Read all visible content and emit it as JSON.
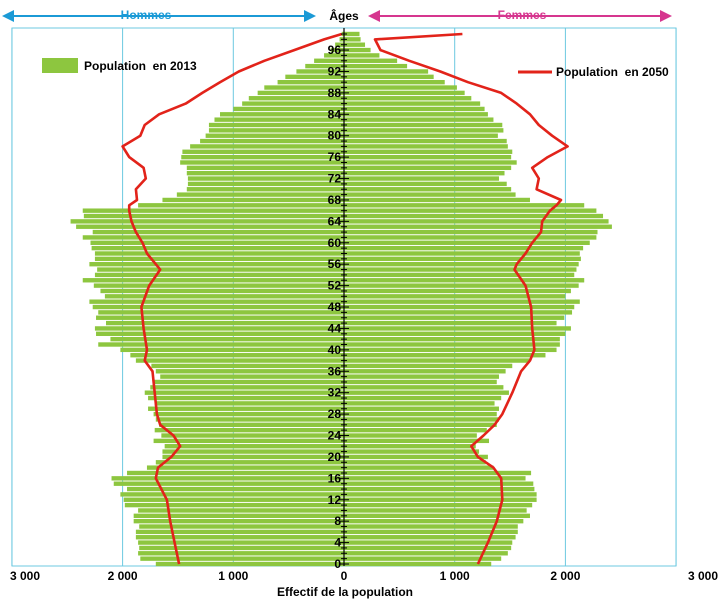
{
  "chart_data": {
    "type": "bar",
    "orientation": "horizontal",
    "xlabel": "Effectif de la population",
    "ylabel": "Âges",
    "xlim": [
      -3000,
      3000
    ],
    "x_tick_values": [
      -3000,
      -2000,
      -1000,
      0,
      1000,
      2000,
      3000
    ],
    "x_tick_labels": [
      "3 000",
      "2 000",
      "1 000",
      "0",
      "1 000",
      "2 000",
      "3 000"
    ],
    "ylim": [
      0,
      99
    ],
    "y_tick_values": [
      0,
      4,
      8,
      12,
      16,
      20,
      24,
      28,
      32,
      36,
      40,
      44,
      48,
      52,
      56,
      60,
      64,
      68,
      72,
      76,
      80,
      84,
      88,
      92,
      96
    ],
    "y_tick_labels": [
      "0",
      "4",
      "8",
      "12",
      "16",
      "20",
      "24",
      "28",
      "32",
      "36",
      "40",
      "44",
      "48",
      "52",
      "56",
      "60",
      "64",
      "68",
      "72",
      "76",
      "80",
      "84",
      "88",
      "92",
      "96"
    ],
    "side_labels": {
      "left": "Hommes",
      "right": "Femmes"
    },
    "colors": {
      "bars": "#8dc63f",
      "line": "#e2231a",
      "left_arrow": "#1b9ad6",
      "right_arrow": "#d6368f",
      "grid": "#6cc8e0"
    },
    "legend": {
      "placement": "top"
    },
    "grid": true,
    "series": [
      {
        "name": "Population  en 2013",
        "kind": "bar",
        "ages": [
          0,
          1,
          2,
          3,
          4,
          5,
          6,
          7,
          8,
          9,
          10,
          11,
          12,
          13,
          14,
          15,
          16,
          17,
          18,
          19,
          20,
          21,
          22,
          23,
          24,
          25,
          26,
          27,
          28,
          29,
          30,
          31,
          32,
          33,
          34,
          35,
          36,
          37,
          38,
          39,
          40,
          41,
          42,
          43,
          44,
          45,
          46,
          47,
          48,
          49,
          50,
          51,
          52,
          53,
          54,
          55,
          56,
          57,
          58,
          59,
          60,
          61,
          62,
          63,
          64,
          65,
          66,
          67,
          68,
          69,
          70,
          71,
          72,
          73,
          74,
          75,
          76,
          77,
          78,
          79,
          80,
          81,
          82,
          83,
          84,
          85,
          86,
          87,
          88,
          89,
          90,
          91,
          92,
          93,
          94,
          95,
          96,
          97,
          98,
          99
        ],
        "men": [
          1700,
          1840,
          1860,
          1850,
          1860,
          1880,
          1880,
          1850,
          1900,
          1900,
          1860,
          1980,
          1990,
          2020,
          1960,
          2080,
          2100,
          1960,
          1780,
          1700,
          1640,
          1640,
          1620,
          1720,
          1650,
          1710,
          1670,
          1700,
          1720,
          1770,
          1710,
          1770,
          1800,
          1750,
          1720,
          1660,
          1700,
          1740,
          1880,
          1930,
          2020,
          2220,
          2110,
          2240,
          2250,
          2150,
          2240,
          2220,
          2270,
          2300,
          2160,
          2200,
          2260,
          2360,
          2250,
          2230,
          2300,
          2250,
          2250,
          2280,
          2290,
          2360,
          2270,
          2420,
          2470,
          2350,
          2360,
          1860,
          1640,
          1510,
          1420,
          1410,
          1410,
          1420,
          1420,
          1480,
          1470,
          1460,
          1390,
          1300,
          1250,
          1220,
          1220,
          1170,
          1120,
          1000,
          920,
          860,
          780,
          720,
          600,
          530,
          430,
          350,
          270,
          180,
          120,
          80,
          40,
          20
        ],
        "women": [
          1330,
          1420,
          1480,
          1510,
          1520,
          1550,
          1570,
          1570,
          1620,
          1680,
          1650,
          1700,
          1740,
          1740,
          1720,
          1710,
          1640,
          1690,
          1350,
          1280,
          1300,
          1220,
          1190,
          1310,
          1200,
          1290,
          1380,
          1400,
          1380,
          1400,
          1360,
          1420,
          1490,
          1440,
          1380,
          1400,
          1460,
          1520,
          1680,
          1820,
          1920,
          1950,
          1950,
          2000,
          2050,
          1920,
          1990,
          2060,
          2080,
          2130,
          2000,
          2050,
          2120,
          2170,
          2080,
          2100,
          2120,
          2140,
          2130,
          2160,
          2220,
          2280,
          2290,
          2420,
          2390,
          2340,
          2280,
          2170,
          1680,
          1550,
          1510,
          1470,
          1400,
          1450,
          1510,
          1560,
          1510,
          1520,
          1480,
          1470,
          1390,
          1440,
          1430,
          1350,
          1300,
          1270,
          1230,
          1150,
          1090,
          1020,
          910,
          810,
          760,
          570,
          480,
          320,
          240,
          190,
          150,
          140
        ]
      },
      {
        "name": "Population  en 2050",
        "kind": "line",
        "ages": [
          0,
          4,
          8,
          12,
          16,
          18,
          20,
          22,
          24,
          26,
          28,
          32,
          36,
          38,
          40,
          44,
          48,
          52,
          55,
          56,
          58,
          60,
          62,
          64,
          66,
          67,
          68,
          70,
          72,
          74,
          76,
          78,
          80,
          82,
          84,
          86,
          88,
          90,
          92,
          94,
          96,
          98,
          99
        ],
        "men": [
          1490,
          1530,
          1570,
          1600,
          1700,
          1680,
          1560,
          1480,
          1540,
          1660,
          1690,
          1710,
          1730,
          1800,
          1780,
          1810,
          1830,
          1760,
          1660,
          1700,
          1780,
          1820,
          1880,
          1920,
          1940,
          1940,
          1870,
          1880,
          1790,
          1810,
          1940,
          2000,
          1840,
          1800,
          1670,
          1430,
          1280,
          1120,
          950,
          720,
          450,
          180,
          20
        ],
        "women": [
          1210,
          1300,
          1380,
          1430,
          1420,
          1350,
          1210,
          1150,
          1260,
          1360,
          1430,
          1520,
          1600,
          1680,
          1720,
          1700,
          1690,
          1640,
          1540,
          1560,
          1640,
          1700,
          1780,
          1790,
          1860,
          1920,
          1960,
          1740,
          1760,
          1700,
          1840,
          2020,
          1880,
          1760,
          1680,
          1560,
          1420,
          1120,
          870,
          590,
          330,
          280,
          1070
        ]
      }
    ]
  }
}
